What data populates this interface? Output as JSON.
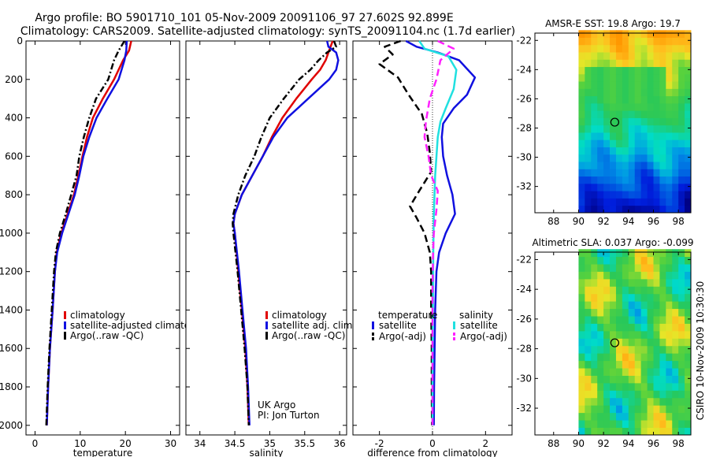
{
  "title_line1": "Argo profile: BO 5901710_101 05-Nov-2009 20091106_97 27.602S 92.899E",
  "title_line2": "Climatology: CARS2009. Satellite-adjusted climatology: synTS_20091104.nc (1.7d earlier)",
  "side_caption": "CSIRO 10-Nov-2009 10:30:30",
  "colors": {
    "climatology": "#e00000",
    "satellite": "#1010e0",
    "argo": "#000000",
    "sat_sal": "#20e0e0",
    "argo_sal": "#ff20ff"
  },
  "chart_data": [
    {
      "type": "line",
      "xlabel": "temperature",
      "xlim": [
        -2,
        32
      ],
      "ylim": [
        2050,
        0
      ],
      "xticks": [
        0,
        10,
        20,
        30
      ],
      "yticks": [
        0,
        200,
        400,
        600,
        800,
        1000,
        1200,
        1400,
        1600,
        1800,
        2000
      ],
      "legend": [
        "climatology",
        "satellite-adjusted climatology",
        "Argo(..raw -QC)"
      ],
      "series": [
        {
          "name": "climatology",
          "color": "#e00000",
          "points": [
            [
              21.3,
              0
            ],
            [
              20.8,
              50
            ],
            [
              19.5,
              100
            ],
            [
              17.5,
              200
            ],
            [
              15,
              300
            ],
            [
              12.8,
              400
            ],
            [
              11.5,
              500
            ],
            [
              10.5,
              600
            ],
            [
              9.6,
              700
            ],
            [
              8.6,
              800
            ],
            [
              7.2,
              900
            ],
            [
              5.8,
              1000
            ],
            [
              4.8,
              1100
            ],
            [
              4.4,
              1200
            ],
            [
              3.9,
              1400
            ],
            [
              3.3,
              1600
            ],
            [
              2.9,
              1800
            ],
            [
              2.6,
              2000
            ]
          ]
        },
        {
          "name": "satellite-adjusted climatology",
          "color": "#1010e0",
          "points": [
            [
              20.3,
              0
            ],
            [
              20.2,
              50
            ],
            [
              19.8,
              100
            ],
            [
              18.5,
              200
            ],
            [
              16,
              300
            ],
            [
              13.6,
              400
            ],
            [
              12,
              500
            ],
            [
              10.7,
              600
            ],
            [
              9.8,
              700
            ],
            [
              8.8,
              800
            ],
            [
              7.4,
              900
            ],
            [
              6,
              1000
            ],
            [
              4.9,
              1100
            ],
            [
              4.4,
              1200
            ],
            [
              3.9,
              1400
            ],
            [
              3.3,
              1600
            ],
            [
              2.9,
              1800
            ],
            [
              2.6,
              2000
            ]
          ]
        },
        {
          "name": "Argo(..raw -QC)",
          "color": "#000000",
          "dash": true,
          "points": [
            [
              19.8,
              0
            ],
            [
              18.5,
              50
            ],
            [
              17.5,
              100
            ],
            [
              16.2,
              200
            ],
            [
              13.5,
              300
            ],
            [
              12,
              400
            ],
            [
              10.8,
              500
            ],
            [
              9.8,
              600
            ],
            [
              9.2,
              700
            ],
            [
              8,
              800
            ],
            [
              6.8,
              900
            ],
            [
              5.5,
              1000
            ],
            [
              4.6,
              1100
            ],
            [
              4.2,
              1200
            ],
            [
              3.7,
              1400
            ],
            [
              3.2,
              1600
            ],
            [
              2.8,
              1800
            ],
            [
              2.5,
              2000
            ]
          ]
        }
      ]
    },
    {
      "type": "line",
      "xlabel": "salinity",
      "xlim": [
        33.8,
        36.1
      ],
      "ylim": [
        2050,
        0
      ],
      "xticks": [
        34,
        34.5,
        35,
        35.5,
        36
      ],
      "legend": [
        "climatology",
        "satellite adj. clim.",
        "Argo(..raw -QC)"
      ],
      "annotations": [
        "UK Argo",
        "PI: Jon Turton"
      ],
      "series": [
        {
          "name": "climatology",
          "color": "#e00000",
          "points": [
            [
              35.9,
              0
            ],
            [
              35.85,
              50
            ],
            [
              35.8,
              100
            ],
            [
              35.72,
              150
            ],
            [
              35.6,
              200
            ],
            [
              35.38,
              300
            ],
            [
              35.18,
              400
            ],
            [
              35.03,
              500
            ],
            [
              34.9,
              600
            ],
            [
              34.75,
              700
            ],
            [
              34.6,
              800
            ],
            [
              34.5,
              900
            ],
            [
              34.48,
              950
            ],
            [
              34.5,
              1000
            ],
            [
              34.55,
              1200
            ],
            [
              34.6,
              1400
            ],
            [
              34.65,
              1600
            ],
            [
              34.68,
              1800
            ],
            [
              34.7,
              2000
            ]
          ]
        },
        {
          "name": "satellite adj. clim.",
          "color": "#1010e0",
          "points": [
            [
              35.82,
              0
            ],
            [
              35.84,
              30
            ],
            [
              35.95,
              60
            ],
            [
              35.98,
              100
            ],
            [
              35.95,
              150
            ],
            [
              35.85,
              200
            ],
            [
              35.55,
              300
            ],
            [
              35.25,
              400
            ],
            [
              35.05,
              500
            ],
            [
              34.9,
              600
            ],
            [
              34.75,
              700
            ],
            [
              34.6,
              800
            ],
            [
              34.5,
              900
            ],
            [
              34.48,
              950
            ],
            [
              34.5,
              1000
            ],
            [
              34.56,
              1200
            ],
            [
              34.61,
              1400
            ],
            [
              34.66,
              1600
            ],
            [
              34.69,
              1800
            ],
            [
              34.71,
              2000
            ]
          ]
        },
        {
          "name": "Argo(..raw -QC)",
          "color": "#000000",
          "dash": true,
          "points": [
            [
              35.92,
              0
            ],
            [
              35.95,
              30
            ],
            [
              35.82,
              60
            ],
            [
              35.7,
              100
            ],
            [
              35.58,
              150
            ],
            [
              35.42,
              200
            ],
            [
              35.2,
              300
            ],
            [
              35.0,
              400
            ],
            [
              34.88,
              500
            ],
            [
              34.78,
              600
            ],
            [
              34.65,
              700
            ],
            [
              34.55,
              800
            ],
            [
              34.48,
              900
            ],
            [
              34.47,
              950
            ],
            [
              34.48,
              1000
            ],
            [
              34.54,
              1200
            ],
            [
              34.59,
              1400
            ],
            [
              34.64,
              1600
            ],
            [
              34.68,
              1800
            ],
            [
              34.7,
              2000
            ]
          ]
        }
      ]
    },
    {
      "type": "line",
      "xlabel": "difference from climatology",
      "xlim": [
        -3,
        3
      ],
      "ylim": [
        2050,
        0
      ],
      "xticks": [
        -2,
        0,
        2
      ],
      "legend_groups": [
        {
          "title": "temperature",
          "items": [
            "satellite",
            "Argo(-adj)"
          ]
        },
        {
          "title": "salinity",
          "items": [
            "satellite",
            "Argo(-adj)"
          ]
        }
      ],
      "series": [
        {
          "name": "temperature satellite",
          "color": "#1010e0",
          "points": [
            [
              -1,
              0
            ],
            [
              -0.6,
              30
            ],
            [
              0.2,
              60
            ],
            [
              1.0,
              100
            ],
            [
              1.6,
              190
            ],
            [
              1.3,
              280
            ],
            [
              0.8,
              350
            ],
            [
              0.4,
              430
            ],
            [
              0.35,
              500
            ],
            [
              0.4,
              600
            ],
            [
              0.55,
              700
            ],
            [
              0.75,
              800
            ],
            [
              0.85,
              900
            ],
            [
              0.5,
              1000
            ],
            [
              0.25,
              1100
            ],
            [
              0.15,
              1200
            ],
            [
              0.1,
              1400
            ],
            [
              0.08,
              1600
            ],
            [
              0.06,
              1800
            ],
            [
              0.05,
              2000
            ]
          ]
        },
        {
          "name": "temperature Argo(-adj)",
          "color": "#000000",
          "dash": true,
          "points": [
            [
              -1.2,
              0
            ],
            [
              -1.8,
              30
            ],
            [
              -1.5,
              70
            ],
            [
              -2.0,
              120
            ],
            [
              -1.3,
              190
            ],
            [
              -0.9,
              280
            ],
            [
              -0.4,
              380
            ],
            [
              -0.2,
              480
            ],
            [
              -0.1,
              580
            ],
            [
              -0.05,
              680
            ],
            [
              -0.5,
              780
            ],
            [
              -0.85,
              860
            ],
            [
              -0.6,
              920
            ],
            [
              -0.3,
              1000
            ],
            [
              -0.1,
              1100
            ],
            [
              -0.05,
              1200
            ],
            [
              -0.05,
              1400
            ],
            [
              -0.03,
              1600
            ],
            [
              -0.03,
              1800
            ],
            [
              -0.02,
              2000
            ]
          ]
        },
        {
          "name": "salinity satellite",
          "color": "#20e0e0",
          "points": [
            [
              -0.5,
              0
            ],
            [
              -0.3,
              40
            ],
            [
              0.6,
              80
            ],
            [
              0.9,
              150
            ],
            [
              0.8,
              250
            ],
            [
              0.5,
              350
            ],
            [
              0.3,
              420
            ],
            [
              0.2,
              500
            ],
            [
              0.1,
              700
            ],
            [
              0.05,
              900
            ],
            [
              0.03,
              1100
            ],
            [
              0.02,
              1300
            ],
            [
              0.01,
              1600
            ],
            [
              0,
              1800
            ],
            [
              0,
              2000
            ]
          ]
        },
        {
          "name": "salinity Argo(-adj)",
          "color": "#ff20ff",
          "dash": true,
          "points": [
            [
              0.2,
              0
            ],
            [
              0.8,
              40
            ],
            [
              0.3,
              100
            ],
            [
              0.15,
              200
            ],
            [
              -0.1,
              300
            ],
            [
              -0.25,
              420
            ],
            [
              -0.3,
              500
            ],
            [
              -0.15,
              600
            ],
            [
              -0.05,
              700
            ],
            [
              0.2,
              780
            ],
            [
              0.15,
              880
            ],
            [
              0.05,
              1000
            ],
            [
              0.02,
              1100
            ],
            [
              0,
              1300
            ],
            [
              0,
              1600
            ],
            [
              0,
              2000
            ]
          ]
        }
      ]
    },
    {
      "type": "heatmap",
      "title": "AMSR-E SST: 19.8  Argo: 19.7",
      "xlim": [
        86.5,
        99
      ],
      "ylim": [
        -33.8,
        -21.5
      ],
      "xticks": [
        88,
        90,
        92,
        94,
        96,
        98
      ],
      "yticks": [
        -22,
        -24,
        -26,
        -28,
        -30,
        -32
      ],
      "marker": [
        92.9,
        -27.6
      ],
      "field": "sst"
    },
    {
      "type": "heatmap",
      "title": "Altimetric SLA: 0.037  Argo: -0.099",
      "xlim": [
        86.5,
        99
      ],
      "ylim": [
        -33.8,
        -21.5
      ],
      "xticks": [
        88,
        90,
        92,
        94,
        96,
        98
      ],
      "yticks": [
        -22,
        -24,
        -26,
        -28,
        -30,
        -32
      ],
      "marker": [
        92.9,
        -27.6
      ],
      "field": "sla"
    }
  ]
}
